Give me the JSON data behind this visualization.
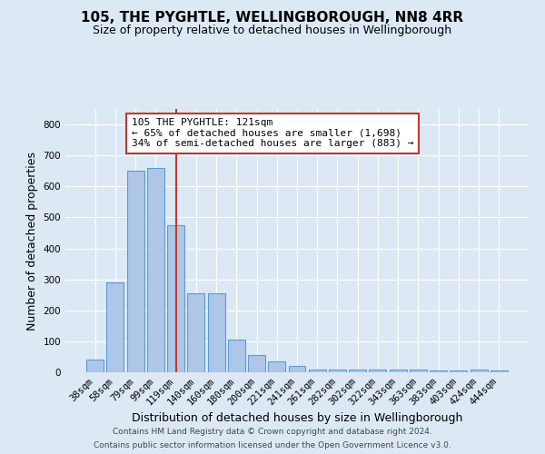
{
  "title": "105, THE PYGHTLE, WELLINGBOROUGH, NN8 4RR",
  "subtitle": "Size of property relative to detached houses in Wellingborough",
  "xlabel": "Distribution of detached houses by size in Wellingborough",
  "ylabel": "Number of detached properties",
  "bar_labels": [
    "38sqm",
    "58sqm",
    "79sqm",
    "99sqm",
    "119sqm",
    "140sqm",
    "160sqm",
    "180sqm",
    "200sqm",
    "221sqm",
    "241sqm",
    "261sqm",
    "282sqm",
    "302sqm",
    "322sqm",
    "343sqm",
    "363sqm",
    "383sqm",
    "403sqm",
    "424sqm",
    "444sqm"
  ],
  "bar_values": [
    40,
    290,
    650,
    660,
    475,
    255,
    255,
    105,
    55,
    35,
    20,
    10,
    10,
    8,
    8,
    8,
    8,
    5,
    5,
    10,
    5
  ],
  "bar_color": "#aec6e8",
  "bar_edgecolor": "#5b9bd5",
  "vline_x_pos": 4.0,
  "vline_color": "#c0392b",
  "ylim": [
    0,
    850
  ],
  "yticks": [
    0,
    100,
    200,
    300,
    400,
    500,
    600,
    700,
    800
  ],
  "annotation_text": "105 THE PYGHTLE: 121sqm\n← 65% of detached houses are smaller (1,698)\n34% of semi-detached houses are larger (883) →",
  "annotation_box_color": "#ffffff",
  "annotation_box_edgecolor": "#c0392b",
  "footer_line1": "Contains HM Land Registry data © Crown copyright and database right 2024.",
  "footer_line2": "Contains public sector information licensed under the Open Government Licence v3.0.",
  "bg_color": "#dce9f5",
  "title_fontsize": 11,
  "subtitle_fontsize": 9,
  "tick_fontsize": 7.5,
  "ylabel_fontsize": 9,
  "xlabel_fontsize": 9,
  "annotation_fontsize": 8,
  "footer_fontsize": 6.5
}
